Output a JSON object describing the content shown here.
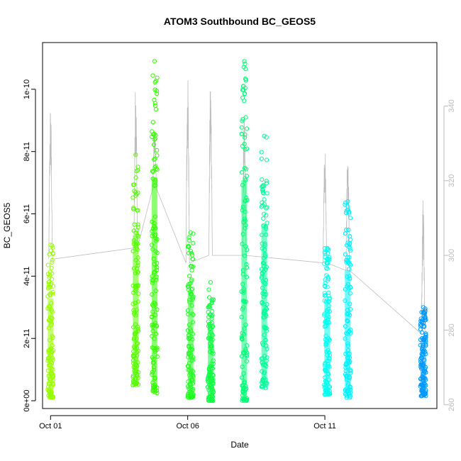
{
  "chart_data": {
    "type": "scatter",
    "title": "ATOM3 Southbound BC_GEOS5",
    "xlabel": "Date",
    "ylabel": "BC_GEOS5",
    "x_ticks": [
      "Oct 01",
      "Oct 06",
      "Oct 11"
    ],
    "xlim": [
      "Sep 30 17:00",
      "Oct 15 02:00"
    ],
    "ylim": [
      -2.5e-12,
      1.15e-10
    ],
    "y_ticks": [
      "0e+00",
      "2e-11",
      "4e-11",
      "6e-11",
      "8e-11",
      "1e-10"
    ],
    "y_tick_values": [
      0,
      2e-11,
      4e-11,
      6e-11,
      8e-11,
      1e-10
    ],
    "right_axis": {
      "ticks": [
        "260",
        "280",
        "300",
        "320",
        "340"
      ],
      "tick_values": [
        260,
        280,
        300,
        320,
        340
      ],
      "lim": [
        259,
        357
      ],
      "color": "#bdbdbd"
    },
    "point_colors": [
      "#99ff00",
      "#55ff00",
      "#22ff00",
      "#00ff33",
      "#00ff99",
      "#00ffcc",
      "#00ffff",
      "#00e5ff",
      "#0099ff"
    ],
    "series": [
      {
        "x": "Oct 01 00:00",
        "ymin": 1e-12,
        "ymax": 5e-11,
        "color": "#99ff00"
      },
      {
        "x": "Oct 04 02:30",
        "ymin": 5e-12,
        "ymax": 7.9e-11,
        "color": "#55ff00"
      },
      {
        "x": "Oct 04 19:00",
        "ymin": 2.5e-12,
        "ymax": 1.09e-10,
        "color": "#33ff00"
      },
      {
        "x": "Oct 06 02:30",
        "ymin": 1e-12,
        "ymax": 5.4e-11,
        "color": "#22ff22"
      },
      {
        "x": "Oct 06 20:00",
        "ymin": 0.0,
        "ymax": 3.8e-11,
        "color": "#11ff44"
      },
      {
        "x": "Oct 08 01:30",
        "ymin": 0.0,
        "ymax": 1.09e-10,
        "color": "#00ff77"
      },
      {
        "x": "Oct 08 19:00",
        "ymin": 4e-12,
        "ymax": 8.5e-11,
        "color": "#00ff99"
      },
      {
        "x": "Oct 11 02:00",
        "ymin": 2e-12,
        "ymax": 4.9e-11,
        "color": "#00ffee"
      },
      {
        "x": "Oct 11 20:00",
        "ymin": 1e-12,
        "ymax": 6.4e-11,
        "color": "#00f2ff"
      },
      {
        "x": "Oct 14 14:00",
        "ymin": 1.5e-12,
        "ymax": 3e-11,
        "color": "#0099ff"
      }
    ],
    "line_series": {
      "color": "#bdbdbd",
      "axis": "right",
      "spikes": [
        {
          "x": "Oct 01 00:00",
          "base": 299,
          "top": 341
        },
        {
          "x": "Oct 04 02:30",
          "base": 302,
          "top": 347
        },
        {
          "x": "Oct 04 19:00",
          "base": 318,
          "top": 334
        },
        {
          "x": "Oct 06 00:00",
          "base": 298,
          "top": 349
        },
        {
          "x": "Oct 06 20:00",
          "base": 300,
          "top": 348
        },
        {
          "x": "Oct 08 01:30",
          "base": 300,
          "top": 337
        },
        {
          "x": "Oct 11 00:00",
          "base": 298,
          "top": 331
        },
        {
          "x": "Oct 11 20:00",
          "base": 296,
          "top": 328
        },
        {
          "x": "Oct 14 14:00",
          "base": 279,
          "top": 316
        }
      ]
    }
  }
}
